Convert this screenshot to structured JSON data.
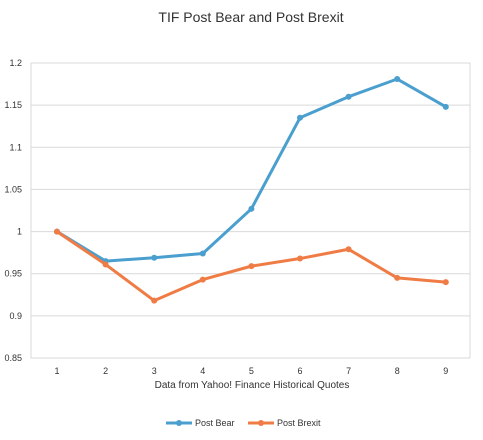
{
  "chart_data": {
    "type": "line",
    "title": "TIF Post Bear and Post Brexit",
    "xlabel": "Data from Yahoo! Finance Historical Quotes",
    "ylabel": "",
    "categories": [
      "1",
      "2",
      "3",
      "4",
      "5",
      "6",
      "7",
      "8",
      "9"
    ],
    "ylim": [
      0.85,
      1.2
    ],
    "yticks": [
      "0.85",
      "0.9",
      "0.95",
      "1",
      "1.05",
      "1.1",
      "1.15",
      "1.2"
    ],
    "grid": true,
    "legend_position": "bottom",
    "series": [
      {
        "name": "Post Bear",
        "color": "#4a9fcf",
        "values": [
          1.0,
          0.965,
          0.969,
          0.974,
          1.027,
          1.135,
          1.16,
          1.181,
          1.148
        ]
      },
      {
        "name": "Post Brexit",
        "color": "#f07c45",
        "values": [
          1.0,
          0.961,
          0.918,
          0.943,
          0.959,
          0.968,
          0.979,
          0.945,
          0.94
        ]
      }
    ]
  }
}
